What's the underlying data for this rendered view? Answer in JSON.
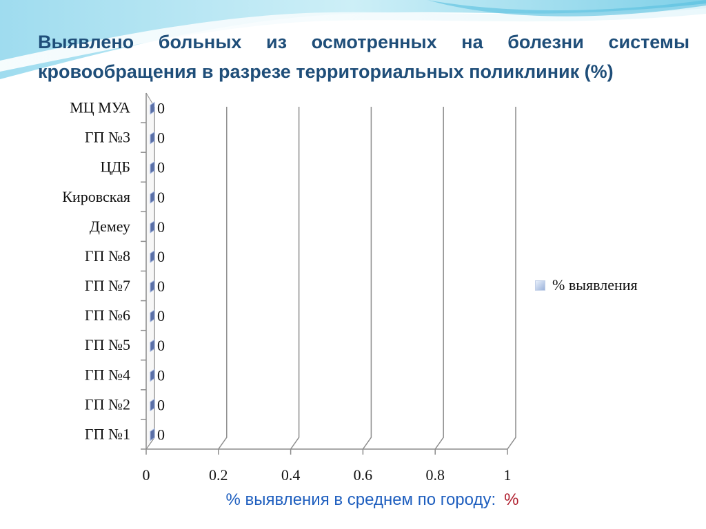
{
  "slide": {
    "title": "Выявлено больных  из осмотренных на болезни системы кровообращения в разрезе территориальных поликлиник (%)",
    "footer_label": "% выявления в среднем по городу:",
    "footer_unit": "%"
  },
  "chart_data": {
    "type": "bar",
    "orientation": "horizontal",
    "style": "3d",
    "categories": [
      "МЦ МУА",
      "ГП №3",
      "ЦДБ",
      "Кировская",
      "Демеу",
      "ГП №8",
      "ГП  №7",
      "ГП №6",
      "ГП №5",
      "ГП №4",
      "ГП №2",
      "ГП №1"
    ],
    "series": [
      {
        "name": "% выявления",
        "values": [
          0,
          0,
          0,
          0,
          0,
          0,
          0,
          0,
          0,
          0,
          0,
          0
        ]
      }
    ],
    "data_labels": [
      "0",
      "0",
      "0",
      "0",
      "0",
      "0",
      "0",
      "0",
      "0",
      "0",
      "0",
      "0"
    ],
    "xlim": [
      0,
      1
    ],
    "x_ticks": [
      "0",
      "0.2",
      "0.4",
      "0.6",
      "0.8",
      "1"
    ],
    "grid": true,
    "legend_position": "right",
    "colors": {
      "bar": "#5a6fa6",
      "bar_light": "#9fb2dc",
      "grid": "#8c8c8c",
      "title": "#1f4e79"
    }
  }
}
